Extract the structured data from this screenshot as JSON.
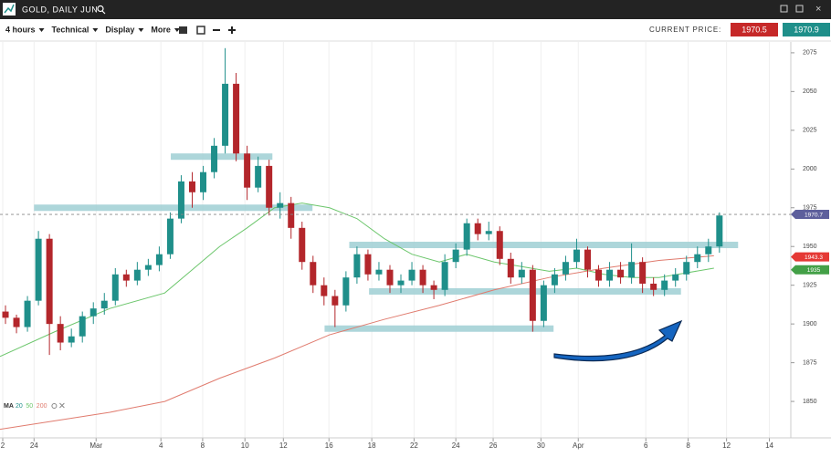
{
  "header": {
    "title": "GOLD, DAILY JUN"
  },
  "toolbar": {
    "menus": [
      "4 hours",
      "Technical",
      "Display",
      "More"
    ],
    "current_price_label": "CURRENT PRICE:",
    "bid": 1970.5,
    "ask": 1970.9
  },
  "chart_data": {
    "type": "candlestick",
    "up_color": "#1f8f8a",
    "down_color": "#b3262b",
    "xlim": [
      0,
      144
    ],
    "ylim": [
      1826.5,
      2082
    ],
    "xticks": [
      {
        "value": 0.5,
        "label": "2"
      },
      {
        "value": 6.2,
        "label": "24"
      },
      {
        "value": 17.5,
        "label": "Mar"
      },
      {
        "value": 29.3,
        "label": "4"
      },
      {
        "value": 36.9,
        "label": "8"
      },
      {
        "value": 44.6,
        "label": "10"
      },
      {
        "value": 51.6,
        "label": "12"
      },
      {
        "value": 59.9,
        "label": "16"
      },
      {
        "value": 67.7,
        "label": "18"
      },
      {
        "value": 75.4,
        "label": "22"
      },
      {
        "value": 83,
        "label": "24"
      },
      {
        "value": 89.8,
        "label": "26"
      },
      {
        "value": 98.5,
        "label": "30"
      },
      {
        "value": 105.3,
        "label": "Apr"
      },
      {
        "value": 117.6,
        "label": "6"
      },
      {
        "value": 125.3,
        "label": "8"
      },
      {
        "value": 132.3,
        "label": "12"
      },
      {
        "value": 140.1,
        "label": "14"
      }
    ],
    "yticks": [
      1850,
      1875,
      1900,
      1925,
      1950,
      1975,
      2000,
      2025,
      2050,
      2075
    ],
    "grid": true,
    "candles": {
      "x": [
        1,
        3,
        5,
        7,
        9,
        11,
        13,
        15,
        17,
        19,
        21,
        23,
        25,
        27,
        29,
        31,
        33,
        35,
        37,
        39,
        41,
        43,
        45,
        47,
        49,
        51,
        53,
        55,
        57,
        59,
        61,
        63,
        65,
        67,
        69,
        71,
        73,
        75,
        77,
        79,
        81,
        83,
        85,
        87,
        89,
        91,
        93,
        95,
        97,
        99,
        101,
        103,
        105,
        107,
        109,
        111,
        113,
        115,
        117,
        119,
        121,
        123,
        125,
        127,
        129,
        131
      ],
      "open": [
        1908,
        1904,
        1898,
        1915,
        1955,
        1900,
        1888,
        1892,
        1905,
        1910,
        1915,
        1932,
        1928,
        1935,
        1938,
        1945,
        1968,
        1992,
        1985,
        1998,
        2015,
        2055,
        2010,
        1988,
        2002,
        1975,
        1978,
        1962,
        1940,
        1925,
        1918,
        1912,
        1930,
        1945,
        1932,
        1935,
        1925,
        1928,
        1935,
        1925,
        1922,
        1940,
        1948,
        1965,
        1958,
        1960,
        1942,
        1930,
        1935,
        1902,
        1925,
        1932,
        1940,
        1948,
        1935,
        1928,
        1935,
        1930,
        1940,
        1926,
        1922,
        1928,
        1932,
        1940,
        1945,
        1950
      ],
      "high": [
        1912,
        1906,
        1918,
        1960,
        1958,
        1905,
        1897,
        1908,
        1914,
        1920,
        1936,
        1935,
        1940,
        1942,
        1950,
        1972,
        1996,
        1998,
        2002,
        2020,
        2078,
        2062,
        2015,
        2008,
        2006,
        1985,
        1982,
        1966,
        1944,
        1930,
        1922,
        1934,
        1950,
        1948,
        1940,
        1938,
        1932,
        1940,
        1938,
        1928,
        1945,
        1952,
        1968,
        1968,
        1966,
        1963,
        1946,
        1940,
        1938,
        1928,
        1936,
        1944,
        1955,
        1950,
        1938,
        1940,
        1940,
        1952,
        1943,
        1930,
        1932,
        1936,
        1944,
        1950,
        1955,
        1972
      ],
      "low": [
        1900,
        1894,
        1895,
        1912,
        1880,
        1883,
        1885,
        1888,
        1900,
        1906,
        1912,
        1924,
        1925,
        1931,
        1934,
        1942,
        1965,
        1975,
        1980,
        1994,
        2010,
        2005,
        1980,
        1985,
        1970,
        1968,
        1955,
        1935,
        1920,
        1912,
        1898,
        1908,
        1926,
        1928,
        1928,
        1920,
        1920,
        1925,
        1920,
        1916,
        1918,
        1936,
        1944,
        1954,
        1954,
        1938,
        1926,
        1926,
        1895,
        1898,
        1920,
        1928,
        1936,
        1930,
        1924,
        1924,
        1926,
        1926,
        1920,
        1918,
        1918,
        1924,
        1928,
        1936,
        1940,
        1946
      ],
      "close": [
        1904,
        1898,
        1915,
        1955,
        1900,
        1888,
        1892,
        1905,
        1910,
        1915,
        1932,
        1928,
        1935,
        1938,
        1945,
        1968,
        1992,
        1985,
        1998,
        2015,
        2055,
        2010,
        1988,
        2002,
        1975,
        1978,
        1962,
        1940,
        1925,
        1918,
        1912,
        1930,
        1945,
        1932,
        1935,
        1925,
        1928,
        1935,
        1925,
        1922,
        1940,
        1948,
        1965,
        1958,
        1960,
        1942,
        1930,
        1935,
        1902,
        1925,
        1932,
        1940,
        1948,
        1935,
        1928,
        1935,
        1930,
        1940,
        1926,
        1922,
        1928,
        1932,
        1940,
        1945,
        1950,
        1970
      ]
    },
    "series": [
      {
        "color": "#6cc66c",
        "x": [
          0,
          10,
          20,
          30,
          35,
          40,
          45,
          50,
          55,
          60,
          65,
          70,
          75,
          80,
          85,
          90,
          95,
          100,
          105,
          110,
          115,
          120,
          125,
          130
        ],
        "values": [
          1879,
          1895,
          1910,
          1920,
          1935,
          1950,
          1962,
          1975,
          1978,
          1975,
          1968,
          1955,
          1945,
          1940,
          1945,
          1940,
          1937,
          1934,
          1936,
          1932,
          1930,
          1930,
          1933,
          1936
        ]
      },
      {
        "color": "#e07b6e",
        "x": [
          0,
          20,
          30,
          40,
          50,
          60,
          70,
          80,
          90,
          100,
          110,
          120,
          130
        ],
        "values": [
          1832,
          1843,
          1850,
          1865,
          1878,
          1893,
          1903,
          1912,
          1922,
          1930,
          1936,
          1941,
          1944
        ]
      }
    ],
    "levels": [
      {
        "value": 1975,
        "x": [
          6.2,
          56.9
        ]
      },
      {
        "value": 2008,
        "x": [
          31.1,
          49.6
        ]
      },
      {
        "value": 1951,
        "x": [
          63.6,
          134.4
        ]
      },
      {
        "value": 1921,
        "x": [
          67.2,
          124
        ]
      },
      {
        "value": 1897,
        "x": [
          59.1,
          100.8
        ]
      }
    ],
    "current_line": 1970.7,
    "price_tags": [
      {
        "value": 1970.7,
        "color": "#5d5f9c"
      },
      {
        "value": 1943.3,
        "color": "#e53935"
      },
      {
        "value": 1935,
        "color": "#43a047"
      }
    ],
    "ma_legend": {
      "label": "MA",
      "periods": [
        {
          "text": 20,
          "color": "#1f8f8a"
        },
        {
          "text": 50,
          "color": "#6cc66c"
        },
        {
          "text": 200,
          "color": "#e07b6e"
        }
      ]
    }
  }
}
